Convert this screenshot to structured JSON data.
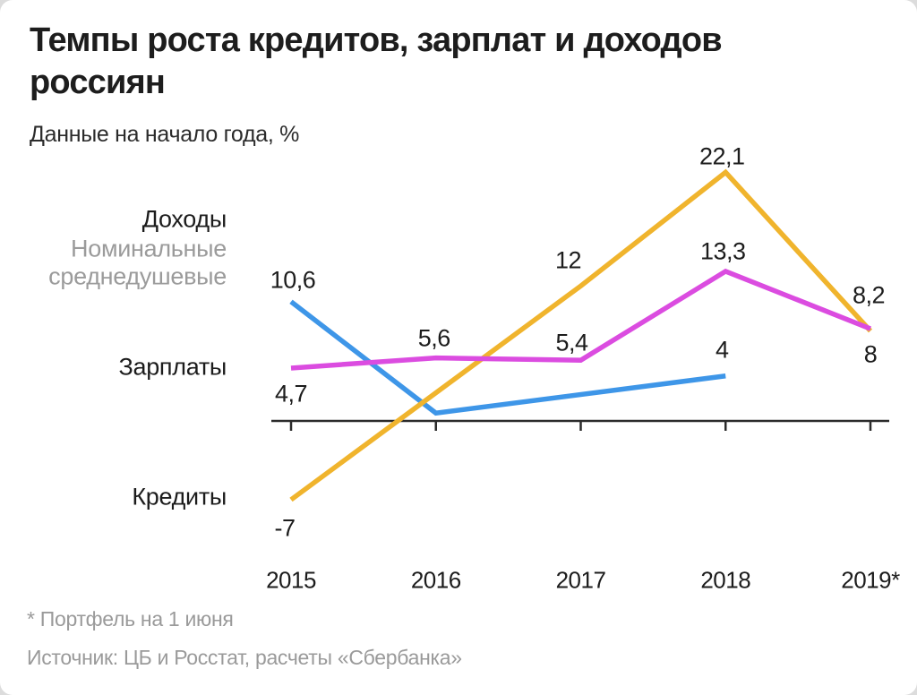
{
  "header": {
    "title_line1": "Темпы роста кредитов, зарплат и доходов",
    "title_line2": "россиян",
    "subtitle": "Данные на начало года, %"
  },
  "series_labels": {
    "incomes": "Доходы",
    "incomes_note_line1": "Номинальные",
    "incomes_note_line2": "среднедушевые",
    "salaries": "Зарплаты",
    "credits": "Кредиты"
  },
  "footnotes": {
    "asterisk": "* Портфель на 1 июня",
    "source": "Источник: ЦБ и Росстат, расчеты «Сбербанка»"
  },
  "colors": {
    "incomes_line": "#3E96E8",
    "salaries_line": "#DB4CE0",
    "credits_line": "#F0B42D",
    "axis": "#2b2b2b",
    "muted_text": "#9b9b9b"
  },
  "chart_data": {
    "type": "line",
    "title": "Темпы роста кредитов, зарплат и доходов россиян",
    "subtitle": "Данные на начало года, %",
    "unit": "%",
    "categories": [
      "2015",
      "2016",
      "2017",
      "2018",
      "2019*"
    ],
    "grid": false,
    "legend_position": "left-annotations",
    "y_axis_hidden": true,
    "ylim": [
      -9,
      24
    ],
    "series": [
      {
        "key": "incomes",
        "name": "Доходы",
        "note": "Номинальные среднедушевые",
        "color": "#3E96E8",
        "values": [
          10.6,
          0.7,
          null,
          4,
          null
        ],
        "point_labels": [
          "10,6",
          "",
          "",
          "4",
          ""
        ]
      },
      {
        "key": "salaries",
        "name": "Зарплаты",
        "color": "#DB4CE0",
        "values": [
          4.7,
          5.6,
          5.4,
          13.3,
          8.2
        ],
        "point_labels": [
          "4,7",
          "5,6",
          "5,4",
          "13,3",
          "8,2"
        ]
      },
      {
        "key": "credits",
        "name": "Кредиты",
        "color": "#F0B42D",
        "values": [
          -7,
          null,
          12,
          22.1,
          8
        ],
        "point_labels": [
          "-7",
          "",
          "12",
          "22,1",
          "8"
        ]
      }
    ],
    "label_offsets": [
      [
        [
          2,
          -24
        ],
        null,
        null,
        [
          -4,
          -29
        ],
        null
      ],
      [
        [
          0,
          29
        ],
        [
          -2,
          -22
        ],
        [
          -10,
          -19
        ],
        [
          -3,
          -22
        ],
        [
          -2,
          -37
        ]
      ],
      [
        [
          -7,
          32
        ],
        null,
        [
          -14,
          -28
        ],
        [
          -4,
          -17
        ],
        [
          0,
          26
        ]
      ]
    ]
  }
}
